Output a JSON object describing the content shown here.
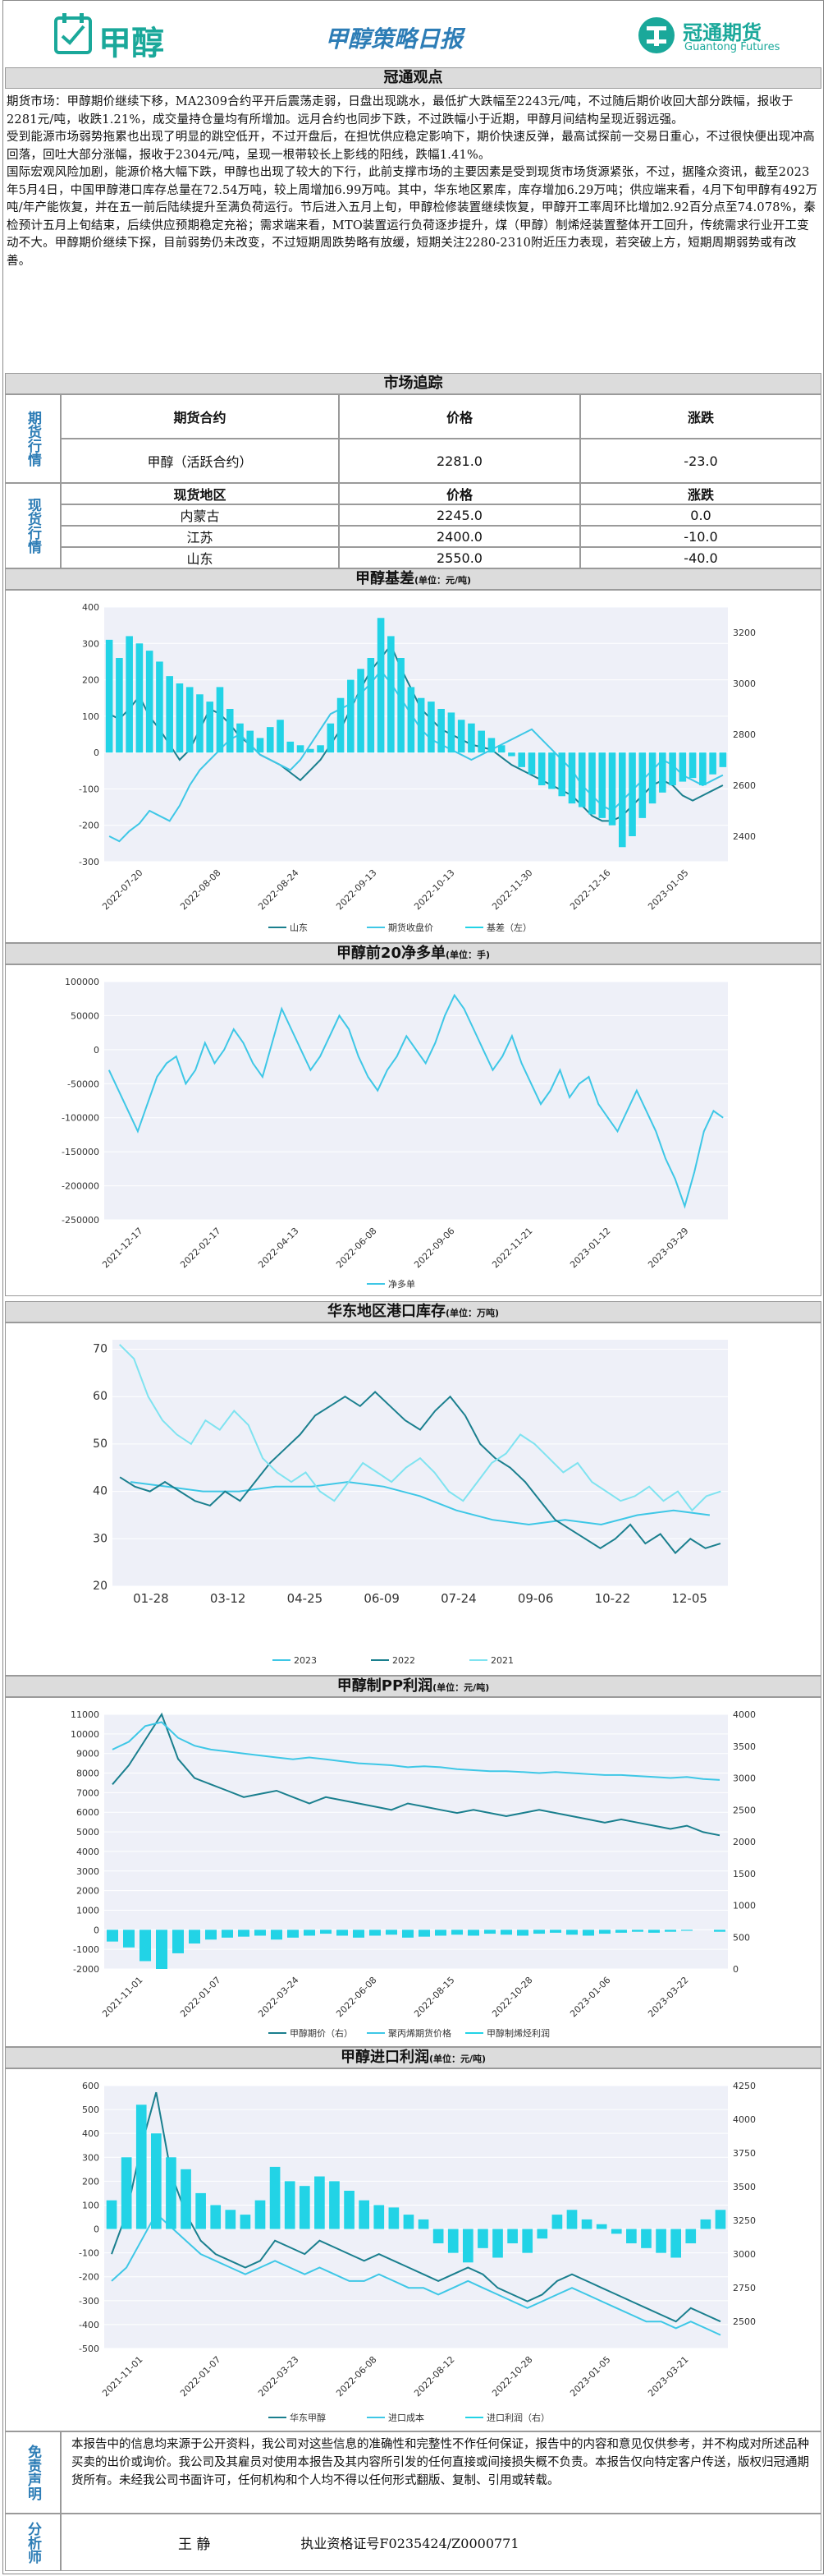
{
  "header": {
    "logo_text": "甲醇",
    "title": "甲醇策略日报",
    "company_cn": "冠通期货",
    "company_en": "Guantong Futures",
    "accent_color": "#1aa89a",
    "title_color": "#2d7db6"
  },
  "viewpoint": {
    "section_title": "冠通观点",
    "paragraphs": [
      "期货市场：甲醇期价继续下移，MA2309合约平开后震荡走弱，日盘出现跳水，最低扩大跌幅至2243元/吨，不过随后期价收回大部分跌幅，报收于2281元/吨，收跌1.21%，成交量持仓量均有所增加。远月合约也同步下跌，不过跌幅小于近期，甲醇月间结构呈现近弱远强。",
      "受到能源市场弱势拖累也出现了明显的跳空低开，不过开盘后，在担忧供应稳定影响下，期价快速反弹，最高试探前一交易日重心，不过很快便出现冲高回落，回吐大部分涨幅，报收于2304元/吨，呈现一根带较长上影线的阳线，跌幅1.41%。",
      "国际宏观风险加剧，能源价格大幅下跌，甲醇也出现了较大的下行，此前支撑市场的主要因素是受到现货市场货源紧张，不过，据隆众资讯，截至2023年5月4日，中国甲醇港口库存总量在72.54万吨，较上周增加6.99万吨。其中，华东地区累库，库存增加6.29万吨；供应端来看，4月下旬甲醇有492万吨/年产能恢复，并在五一前后陆续提升至满负荷运行。节后进入五月上旬，甲醇检修装置继续恢复，甲醇开工率周环比增加2.92百分点至74.078%，秦检预计五月上旬结束，后续供应预期稳定充裕；需求端来看，MTO装置运行负荷逐步提升，煤（甲醇）制烯烃装置整体开工回升，传统需求行业开工变动不大。甲醇期价继续下探，目前弱势仍未改变，不过短期周跌势略有放缓，短期关注2280-2310附近压力表现，若突破上方，短期周期弱势或有改善。"
    ]
  },
  "market": {
    "section_title": "市场追踪",
    "futures_label": "期货行情",
    "spot_label": "现货行情",
    "futures_header": {
      "contract": "期货合约",
      "price": "价格",
      "change": "涨跌"
    },
    "futures_rows": [
      {
        "contract": "甲醇（活跃合约）",
        "price": "2281.0",
        "change": "-23.0"
      }
    ],
    "spot_header": {
      "region": "现货地区",
      "price": "价格",
      "change": "涨跌"
    },
    "spot_rows": [
      {
        "region": "内蒙古",
        "price": "2245.0",
        "change": "0.0"
      },
      {
        "region": "江苏",
        "price": "2400.0",
        "change": "-10.0"
      },
      {
        "region": "山东",
        "price": "2550.0",
        "change": "-40.0"
      }
    ]
  },
  "charts": {
    "basis": {
      "title": "甲醇基差",
      "unit": "(单位：元/吨)"
    },
    "net": {
      "title": "甲醇前20净多单",
      "unit": "(单位：手)"
    },
    "inventory": {
      "title": "华东地区港口库存",
      "unit": "(单位：万吨)"
    },
    "pp": {
      "title": "甲醇制PP利润",
      "unit": "(单位：元/吨)"
    },
    "import": {
      "title": "甲醇进口利润",
      "unit": "(单位：元/吨)"
    }
  },
  "chart_data": [
    {
      "type": "bar+line",
      "title": "甲醇基差",
      "x_ticks": [
        "2022-07-20",
        "2022-08-08",
        "2022-08-24",
        "2022-09-13",
        "2022-10-13",
        "2022-11-30",
        "2022-12-16",
        "2023-01-05"
      ],
      "y_left_ticks": [
        400,
        300,
        200,
        100,
        0,
        -100,
        -200,
        -300
      ],
      "y_right_ticks": [
        3200,
        3000,
        2800,
        2600,
        2400
      ],
      "ylim_left": [
        -300,
        400
      ],
      "ylim_right": [
        2300,
        3300
      ],
      "series": [
        {
          "name": "山东",
          "axis": "right",
          "color": "#1a7f8e",
          "values": [
            2880,
            2860,
            2900,
            2950,
            2870,
            2820,
            2760,
            2700,
            2740,
            2820,
            2900,
            2880,
            2840,
            2790,
            2760,
            2720,
            2700,
            2680,
            2650,
            2620,
            2660,
            2700,
            2760,
            2820,
            2900,
            2980,
            3050,
            3100,
            3150,
            3060,
            2980,
            2900,
            2860,
            2820,
            2800,
            2780,
            2760,
            2750,
            2740,
            2710,
            2680,
            2660,
            2640,
            2620,
            2600,
            2580,
            2560,
            2520,
            2480,
            2460,
            2460,
            2480,
            2520,
            2560,
            2600,
            2620,
            2600,
            2560,
            2540,
            2560,
            2580,
            2600
          ]
        },
        {
          "name": "期货收盘价",
          "axis": "right",
          "color": "#3ec7e6",
          "values": [
            2400,
            2380,
            2420,
            2450,
            2500,
            2480,
            2460,
            2520,
            2600,
            2660,
            2700,
            2740,
            2780,
            2800,
            2760,
            2720,
            2700,
            2680,
            2660,
            2700,
            2760,
            2820,
            2880,
            2900,
            2920,
            2960,
            3000,
            3050,
            3000,
            2940,
            2880,
            2820,
            2780,
            2760,
            2740,
            2720,
            2700,
            2720,
            2740,
            2760,
            2780,
            2800,
            2820,
            2780,
            2740,
            2700,
            2660,
            2600,
            2560,
            2520,
            2500,
            2540,
            2580,
            2620,
            2660,
            2700,
            2680,
            2640,
            2620,
            2600,
            2620,
            2640
          ]
        },
        {
          "name": "基差（左）",
          "axis": "left",
          "type": "bar",
          "color": "#22d3e6",
          "values": [
            310,
            260,
            320,
            300,
            280,
            250,
            210,
            190,
            180,
            160,
            140,
            180,
            120,
            80,
            60,
            40,
            70,
            90,
            30,
            20,
            10,
            20,
            80,
            150,
            200,
            230,
            260,
            370,
            320,
            260,
            180,
            150,
            140,
            120,
            110,
            90,
            80,
            60,
            40,
            20,
            -10,
            -40,
            -60,
            -90,
            -100,
            -120,
            -140,
            -150,
            -170,
            -180,
            -200,
            -260,
            -230,
            -180,
            -140,
            -110,
            -90,
            -80,
            -70,
            -90,
            -60,
            -40
          ]
        }
      ]
    },
    {
      "type": "line",
      "title": "甲醇前20净多单",
      "x_ticks": [
        "2021-12-17",
        "2022-02-17",
        "2022-04-13",
        "2022-06-08",
        "2022-09-06",
        "2022-11-21",
        "2023-01-12",
        "2023-03-29"
      ],
      "y_ticks": [
        100000,
        50000,
        0,
        -50000,
        -100000,
        -150000,
        -200000,
        -250000
      ],
      "ylim": [
        -250000,
        100000
      ],
      "series": [
        {
          "name": "净多单",
          "color": "#3ec7e6",
          "values": [
            -30000,
            -60000,
            -90000,
            -120000,
            -80000,
            -40000,
            -20000,
            -10000,
            -50000,
            -30000,
            10000,
            -20000,
            0,
            30000,
            10000,
            -20000,
            -40000,
            10000,
            60000,
            30000,
            0,
            -30000,
            -10000,
            20000,
            50000,
            30000,
            -10000,
            -40000,
            -60000,
            -30000,
            -10000,
            20000,
            0,
            -20000,
            10000,
            50000,
            80000,
            60000,
            30000,
            0,
            -30000,
            -10000,
            20000,
            -20000,
            -50000,
            -80000,
            -60000,
            -30000,
            -70000,
            -50000,
            -40000,
            -80000,
            -100000,
            -120000,
            -90000,
            -60000,
            -90000,
            -120000,
            -160000,
            -190000,
            -230000,
            -180000,
            -120000,
            -90000,
            -100000
          ]
        }
      ]
    },
    {
      "type": "line",
      "title": "华东地区港口库存",
      "x_ticks": [
        "01-28",
        "03-12",
        "04-25",
        "06-09",
        "07-24",
        "09-06",
        "10-22",
        "12-05"
      ],
      "y_ticks": [
        70,
        60,
        50,
        40,
        30,
        20
      ],
      "ylim": [
        20,
        72
      ],
      "series": [
        {
          "name": "2023",
          "color": "#3ec7e6",
          "values": [
            42,
            41,
            40,
            40,
            41,
            41,
            42,
            41,
            39,
            36,
            34,
            33,
            34,
            33,
            35,
            36,
            35
          ]
        },
        {
          "name": "2022",
          "color": "#1a7f8e",
          "values": [
            43,
            41,
            40,
            42,
            40,
            38,
            37,
            40,
            38,
            42,
            46,
            49,
            52,
            56,
            58,
            60,
            58,
            61,
            58,
            55,
            53,
            57,
            60,
            56,
            50,
            47,
            45,
            42,
            38,
            34,
            32,
            30,
            28,
            30,
            33,
            29,
            31,
            27,
            30,
            28,
            29
          ]
        },
        {
          "name": "2021",
          "color": "#7fe3f0",
          "values": [
            71,
            68,
            60,
            55,
            52,
            50,
            55,
            53,
            57,
            54,
            47,
            44,
            42,
            44,
            40,
            38,
            42,
            46,
            44,
            42,
            45,
            47,
            44,
            40,
            38,
            42,
            46,
            48,
            52,
            50,
            47,
            44,
            46,
            42,
            40,
            38,
            39,
            41,
            38,
            40,
            36,
            39,
            40
          ]
        }
      ]
    },
    {
      "type": "bar+line",
      "title": "甲醇制PP利润",
      "x_ticks": [
        "2021-11-01",
        "2022-01-07",
        "2022-03-24",
        "2022-06-08",
        "2022-08-15",
        "2022-10-28",
        "2023-01-06",
        "2023-03-22"
      ],
      "y_left_ticks": [
        11000,
        10000,
        9000,
        8000,
        7000,
        6000,
        5000,
        4000,
        3000,
        2000,
        1000,
        0,
        -1000,
        -2000
      ],
      "y_right_ticks": [
        4000,
        3500,
        3000,
        2500,
        2000,
        1500,
        1000,
        500,
        0
      ],
      "ylim_left": [
        -2000,
        11000
      ],
      "ylim_right": [
        0,
        4000
      ],
      "series": [
        {
          "name": "甲醇期价（右）",
          "axis": "right",
          "color": "#1a7f8e",
          "values": [
            2900,
            3200,
            3600,
            4000,
            3300,
            3000,
            2900,
            2800,
            2700,
            2750,
            2800,
            2700,
            2600,
            2700,
            2650,
            2600,
            2550,
            2500,
            2600,
            2550,
            2500,
            2450,
            2500,
            2450,
            2400,
            2450,
            2500,
            2450,
            2400,
            2350,
            2300,
            2350,
            2300,
            2250,
            2200,
            2250,
            2150,
            2100
          ]
        },
        {
          "name": "聚丙烯期货价格",
          "axis": "left",
          "color": "#3ec7e6",
          "values": [
            9200,
            9600,
            10400,
            10600,
            9800,
            9400,
            9200,
            9100,
            9000,
            8900,
            8800,
            8700,
            8800,
            8700,
            8600,
            8500,
            8450,
            8400,
            8300,
            8350,
            8300,
            8200,
            8150,
            8100,
            8100,
            8050,
            8000,
            8050,
            8000,
            7950,
            7900,
            7900,
            7850,
            7800,
            7750,
            7800,
            7700,
            7650
          ]
        },
        {
          "name": "甲醇制烯烃利润",
          "axis": "left",
          "type": "bar",
          "color": "#22d3e6",
          "values": [
            -600,
            -900,
            -1600,
            -2000,
            -1200,
            -700,
            -500,
            -400,
            -350,
            -300,
            -500,
            -400,
            -300,
            -200,
            -300,
            -400,
            -300,
            -250,
            -400,
            -350,
            -300,
            -250,
            -300,
            -200,
            -250,
            -300,
            -200,
            -150,
            -250,
            -300,
            -200,
            -150,
            -100,
            -150,
            -100,
            -50,
            0,
            -100
          ]
        }
      ]
    },
    {
      "type": "bar+line",
      "title": "甲醇进口利润",
      "x_ticks": [
        "2021-11-01",
        "2022-01-07",
        "2022-03-23",
        "2022-06-08",
        "2022-08-12",
        "2022-10-28",
        "2023-01-05",
        "2023-03-21"
      ],
      "y_left_ticks": [
        600,
        500,
        400,
        300,
        200,
        100,
        0,
        -100,
        -200,
        -300,
        -400,
        -500
      ],
      "y_right_ticks": [
        4250,
        4000,
        3750,
        3500,
        3250,
        3000,
        2750,
        2500
      ],
      "ylim_left": [
        -500,
        600
      ],
      "ylim_right": [
        2300,
        4250
      ],
      "series": [
        {
          "name": "华东甲醇",
          "axis": "right",
          "color": "#1a7f8e",
          "values": [
            3000,
            3300,
            3800,
            4200,
            3600,
            3300,
            3100,
            3000,
            2950,
            2900,
            2950,
            3100,
            3050,
            3000,
            3100,
            3050,
            3000,
            2950,
            3000,
            2950,
            2900,
            2850,
            2800,
            2850,
            2900,
            2850,
            2750,
            2700,
            2650,
            2700,
            2800,
            2850,
            2800,
            2750,
            2700,
            2650,
            2600,
            2550,
            2500,
            2600,
            2550,
            2500
          ]
        },
        {
          "name": "进口成本",
          "axis": "right",
          "color": "#3ec7e6",
          "values": [
            2800,
            2900,
            3100,
            3300,
            3200,
            3100,
            3000,
            2950,
            2900,
            2850,
            2900,
            2950,
            2900,
            2850,
            2900,
            2850,
            2800,
            2800,
            2850,
            2800,
            2750,
            2750,
            2700,
            2750,
            2800,
            2750,
            2700,
            2650,
            2600,
            2650,
            2700,
            2750,
            2700,
            2650,
            2600,
            2550,
            2500,
            2500,
            2450,
            2500,
            2450,
            2400
          ]
        },
        {
          "name": "进口利润（右）",
          "axis": "left",
          "type": "bar",
          "color": "#22d3e6",
          "values": [
            120,
            300,
            520,
            400,
            300,
            250,
            150,
            100,
            80,
            60,
            120,
            260,
            200,
            180,
            220,
            200,
            160,
            120,
            100,
            90,
            60,
            40,
            -60,
            -100,
            -140,
            -80,
            -120,
            -60,
            -100,
            -40,
            60,
            80,
            40,
            20,
            -20,
            -60,
            -80,
            -100,
            -120,
            -60,
            40,
            80
          ]
        }
      ]
    }
  ],
  "disclaimer": {
    "label": "免责声明",
    "text": "本报告中的信息均来源于公开资料，我公司对这些信息的准确性和完整性不作任何保证，报告中的内容和意见仅供参考，并不构成对所述品种买卖的出价或询价。我公司及其雇员对使用本报告及其内容所引发的任何直接或间接损失概不负责。本报告仅向特定客户传送，版权归冠通期货所有。未经我公司书面许可，任何机构和个人均不得以任何形式翻版、复制、引用或转载。"
  },
  "analyst": {
    "label": "分析师",
    "name": "王  静",
    "license": "执业资格证号F0235424/Z0000771"
  }
}
